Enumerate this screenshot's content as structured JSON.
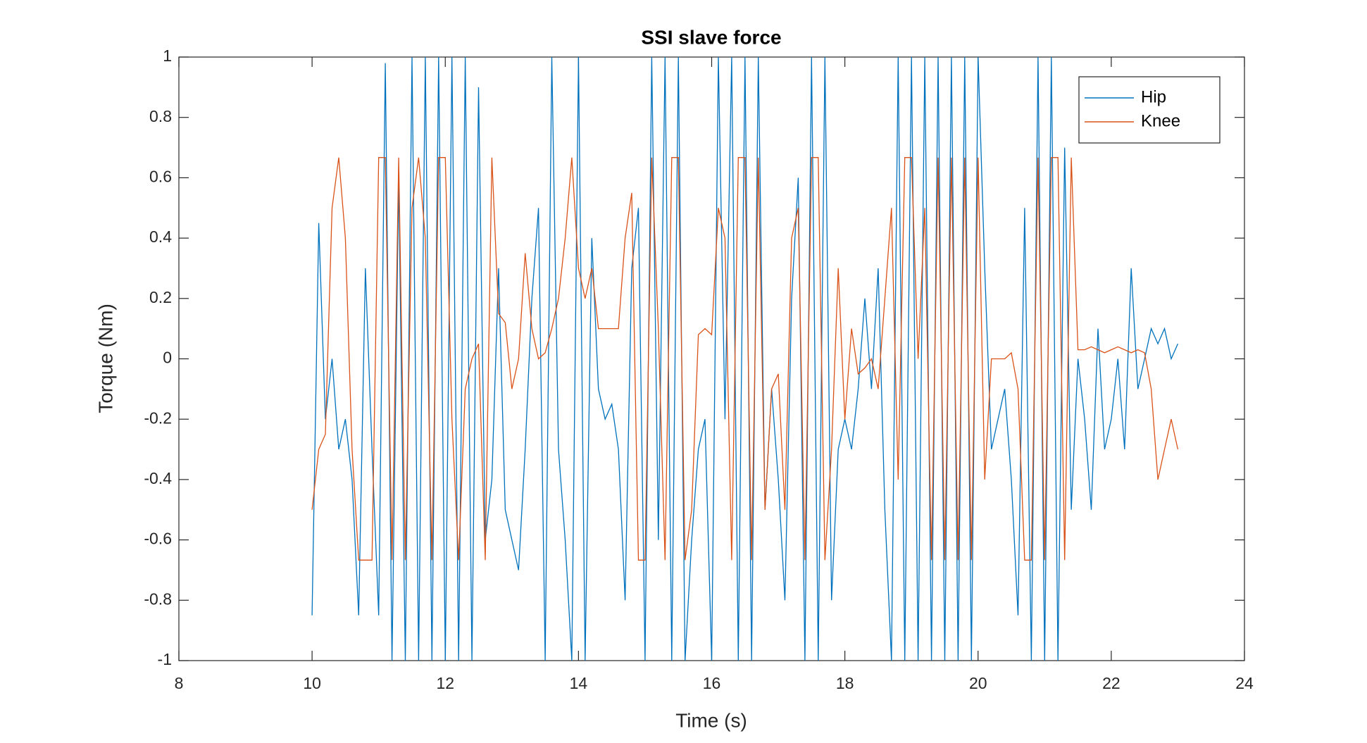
{
  "chart_data": {
    "type": "line",
    "title": "SSI slave force",
    "x_label": "Time (s)",
    "y_label": "Torque (Nm)",
    "x": [
      10.0,
      10.1,
      10.2,
      10.3,
      10.4,
      10.5,
      10.6,
      10.7,
      10.8,
      10.9,
      11.0,
      11.1,
      11.2,
      11.3,
      11.4,
      11.5,
      11.6,
      11.7,
      11.8,
      11.9,
      12.0,
      12.1,
      12.2,
      12.3,
      12.4,
      12.5,
      12.6,
      12.7,
      12.8,
      12.9,
      13.0,
      13.1,
      13.2,
      13.3,
      13.4,
      13.5,
      13.6,
      13.7,
      13.8,
      13.9,
      14.0,
      14.1,
      14.2,
      14.3,
      14.4,
      14.5,
      14.6,
      14.7,
      14.8,
      14.9,
      15.0,
      15.1,
      15.2,
      15.3,
      15.4,
      15.5,
      15.6,
      15.7,
      15.8,
      15.9,
      16.0,
      16.1,
      16.2,
      16.3,
      16.4,
      16.5,
      16.6,
      16.7,
      16.8,
      16.9,
      17.0,
      17.1,
      17.2,
      17.3,
      17.4,
      17.5,
      17.6,
      17.7,
      17.8,
      17.9,
      18.0,
      18.1,
      18.2,
      18.3,
      18.4,
      18.5,
      18.6,
      18.7,
      18.8,
      18.9,
      19.0,
      19.1,
      19.2,
      19.3,
      19.4,
      19.5,
      19.6,
      19.7,
      19.8,
      19.9,
      20.0,
      20.1,
      20.2,
      20.3,
      20.4,
      20.5,
      20.6,
      20.7,
      20.8,
      20.9,
      21.0,
      21.1,
      21.2,
      21.3,
      21.4,
      21.5,
      21.6,
      21.7,
      21.8,
      21.9,
      22.0,
      22.1,
      22.2,
      22.3,
      22.4,
      22.5,
      22.6,
      22.7,
      22.8,
      22.9,
      23.0
    ],
    "series": [
      {
        "name": "Hip",
        "color": "#0072bd",
        "values": [
          -0.85,
          0.45,
          -0.2,
          0.0,
          -0.3,
          -0.2,
          -0.4,
          -0.85,
          0.3,
          -0.3,
          -0.85,
          0.98,
          -1,
          0.6,
          -1,
          1,
          -1,
          1,
          -1,
          1,
          -1,
          1,
          -1,
          1,
          -1,
          0.9,
          -0.6,
          -0.4,
          0.3,
          -0.5,
          -0.6,
          -0.7,
          -0.3,
          0.2,
          0.5,
          -1,
          1,
          -0.3,
          -0.6,
          -1,
          1,
          -1,
          0.4,
          -0.1,
          -0.2,
          -0.15,
          -0.3,
          -0.8,
          0.3,
          0.5,
          -1,
          1,
          -0.6,
          1,
          -1,
          1,
          -1,
          -0.6,
          -0.3,
          -0.2,
          -1,
          1,
          -0.2,
          1,
          -1,
          1,
          -1,
          1,
          -0.5,
          -0.1,
          -0.4,
          -0.8,
          0.2,
          0.6,
          -1,
          1,
          -1,
          1,
          -0.8,
          -0.3,
          -0.2,
          -0.3,
          -0.1,
          0.2,
          -0.1,
          0.3,
          -0.5,
          -1,
          1,
          -1,
          1,
          -1,
          1,
          -1,
          1,
          -1,
          1,
          -1,
          1,
          -1,
          1,
          0.3,
          -0.3,
          -0.2,
          -0.1,
          -0.4,
          -0.85,
          0.5,
          -1,
          1,
          -1,
          1,
          -1,
          0.7,
          -0.5,
          0.0,
          -0.2,
          -0.5,
          0.1,
          -0.3,
          -0.2,
          0.0,
          -0.3,
          0.3,
          -0.1,
          0.0,
          0.1,
          0.05,
          0.1,
          0.0,
          0.05
        ]
      },
      {
        "name": "Knee",
        "color": "#d95319",
        "values": [
          -0.5,
          -0.3,
          -0.25,
          0.5,
          0.667,
          0.4,
          -0.3,
          -0.667,
          -0.667,
          -0.667,
          0.667,
          0.667,
          -0.667,
          0.667,
          -0.667,
          0.5,
          0.667,
          0.4,
          -0.667,
          0.667,
          0.667,
          -0.2,
          -0.667,
          -0.1,
          0.0,
          0.05,
          -0.667,
          0.667,
          0.15,
          0.12,
          -0.1,
          0.0,
          0.35,
          0.1,
          0.0,
          0.02,
          0.1,
          0.2,
          0.4,
          0.667,
          0.3,
          0.2,
          0.3,
          0.1,
          0.1,
          0.1,
          0.1,
          0.4,
          0.55,
          -0.667,
          -0.667,
          0.667,
          0.1,
          -0.667,
          0.667,
          0.667,
          -0.667,
          -0.5,
          0.08,
          0.1,
          0.08,
          0.5,
          0.4,
          -0.667,
          0.667,
          0.667,
          -0.667,
          0.667,
          -0.5,
          -0.1,
          -0.05,
          -0.5,
          0.4,
          0.5,
          -0.667,
          0.667,
          0.667,
          -0.667,
          -0.3,
          0.3,
          -0.2,
          0.1,
          -0.05,
          -0.03,
          0.0,
          -0.1,
          0.2,
          0.5,
          -0.4,
          0.667,
          0.667,
          0.0,
          0.5,
          -0.667,
          0.667,
          -0.667,
          0.667,
          -0.667,
          0.667,
          -0.667,
          0.667,
          -0.4,
          0.0,
          0.0,
          0.0,
          0.02,
          -0.1,
          -0.667,
          -0.667,
          0.667,
          -0.667,
          0.667,
          0.667,
          -0.667,
          0.667,
          0.03,
          0.03,
          0.04,
          0.03,
          0.02,
          0.03,
          0.04,
          0.03,
          0.02,
          0.03,
          0.02,
          -0.1,
          -0.4,
          -0.3,
          -0.2,
          -0.3
        ]
      }
    ],
    "xlim": [
      8,
      24
    ],
    "xticks": [
      8,
      10,
      12,
      14,
      16,
      18,
      20,
      22,
      24
    ],
    "ylim": [
      -1,
      1
    ],
    "yticks": [
      -1,
      -0.8,
      -0.6,
      -0.4,
      -0.2,
      0,
      0.2,
      0.4,
      0.6,
      0.8,
      1
    ],
    "legend": "top-right"
  }
}
